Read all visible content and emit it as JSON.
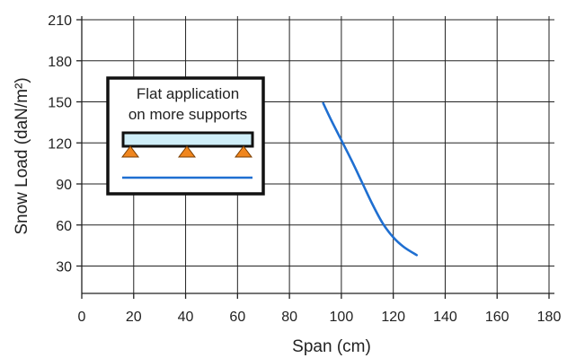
{
  "chart_data": {
    "type": "line",
    "xlabel": "Span (cm)",
    "ylabel": "Snow Load (daN/m²)",
    "xlim": [
      0,
      180
    ],
    "ylim": [
      10,
      210
    ],
    "x_ticks": [
      0,
      20,
      40,
      60,
      80,
      100,
      120,
      140,
      160,
      180
    ],
    "y_ticks": [
      30,
      60,
      90,
      120,
      150,
      180,
      210
    ],
    "grid": true,
    "series": [
      {
        "name": "Flat application on more supports",
        "color": "#1f6fd1",
        "x": [
          93,
          96,
          100,
          104,
          108,
          112,
          116,
          120,
          124,
          129
        ],
        "y": [
          149,
          137,
          122,
          107,
          91,
          75,
          61,
          51,
          44,
          38
        ]
      }
    ],
    "legend": {
      "placement": "upper-left",
      "lines": [
        "Flat application",
        "on more supports"
      ],
      "beam_color": "#cfeef8",
      "support_color": "#f0861e",
      "line_color": "#1f6fd1"
    }
  }
}
